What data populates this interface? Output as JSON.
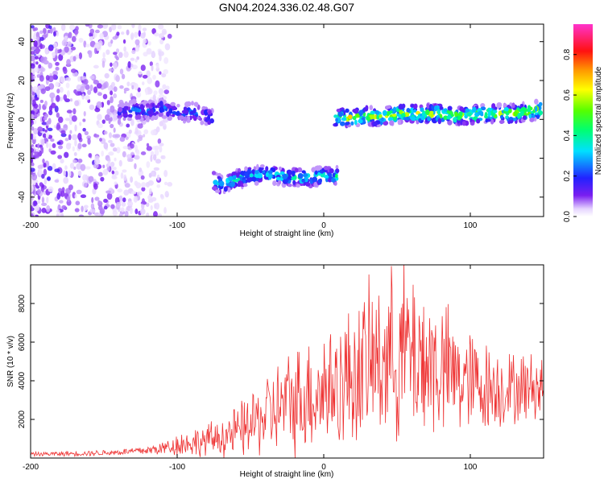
{
  "title": "GN04.2024.336.02.48.G07",
  "chart_data": [
    {
      "type": "heatmap",
      "xlabel": "Height of straight line (km)",
      "ylabel": "Frequency (Hz)",
      "xlim": [
        -200,
        150
      ],
      "ylim": [
        -50,
        49
      ],
      "x_ticks": [
        "-200",
        "-100",
        "0",
        "100"
      ],
      "y_ticks": [
        "-40",
        "-20",
        "0",
        "20",
        "40"
      ],
      "colorbar": {
        "label": "Normalized spectral amplitude",
        "range": [
          0,
          0.95
        ],
        "ticks": [
          "0.0",
          "0.2",
          "0.4",
          "0.6",
          "0.8"
        ]
      },
      "tracks": [
        {
          "x": [
            -140,
            -130,
            -120,
            -110,
            -100,
            -90,
            -80,
            -76
          ],
          "y": [
            3,
            5,
            4,
            6,
            3,
            4,
            2,
            0
          ],
          "amplitude": 0.25
        },
        {
          "x": [
            -76,
            -70,
            -60,
            -50,
            -40,
            -30,
            -20,
            -10,
            0,
            10
          ],
          "y": [
            -31,
            -34,
            -31,
            -29,
            -28,
            -29,
            -30,
            -30,
            -29,
            -29
          ],
          "amplitude": 0.4
        },
        {
          "x": [
            8,
            20,
            30,
            40,
            50,
            60,
            70,
            80,
            90,
            100,
            110,
            120,
            130,
            140,
            148
          ],
          "y": [
            1,
            1,
            2,
            1,
            3,
            3,
            3,
            3,
            2,
            2,
            3,
            3,
            3,
            4,
            5
          ],
          "amplitude": 0.6
        }
      ]
    },
    {
      "type": "line",
      "xlabel": "Height of straight line (km)",
      "ylabel": "SNR (10 * v/v)",
      "xlim": [
        -200,
        150
      ],
      "ylim": [
        0,
        10000
      ],
      "x_ticks": [
        "-200",
        "-100",
        "0",
        "100"
      ],
      "y_ticks": [
        "2000",
        "4000",
        "6000",
        "8000"
      ],
      "series": [
        {
          "color": "#ee3333",
          "x": [
            -200,
            -180,
            -160,
            -140,
            -120,
            -110,
            -100,
            -90,
            -80,
            -70,
            -60,
            -50,
            -40,
            -30,
            -20,
            -10,
            0,
            10,
            20,
            30,
            40,
            50,
            55,
            60,
            70,
            80,
            90,
            100,
            110,
            120,
            130,
            140,
            150
          ],
          "y": [
            200,
            220,
            250,
            300,
            400,
            500,
            700,
            800,
            900,
            1100,
            1300,
            1700,
            2200,
            2600,
            3000,
            3300,
            3600,
            3800,
            4300,
            4800,
            5200,
            5400,
            5600,
            5400,
            5000,
            4600,
            4200,
            3900,
            3700,
            3600,
            3600,
            3700,
            3700
          ],
          "spread": [
            100,
            120,
            140,
            160,
            250,
            350,
            600,
            700,
            800,
            1000,
            1300,
            1600,
            2000,
            2400,
            2700,
            2900,
            3200,
            3300,
            3600,
            3900,
            4100,
            4300,
            4400,
            4300,
            4000,
            3500,
            3000,
            2600,
            2300,
            2000,
            1800,
            1700,
            1600
          ]
        }
      ]
    }
  ]
}
